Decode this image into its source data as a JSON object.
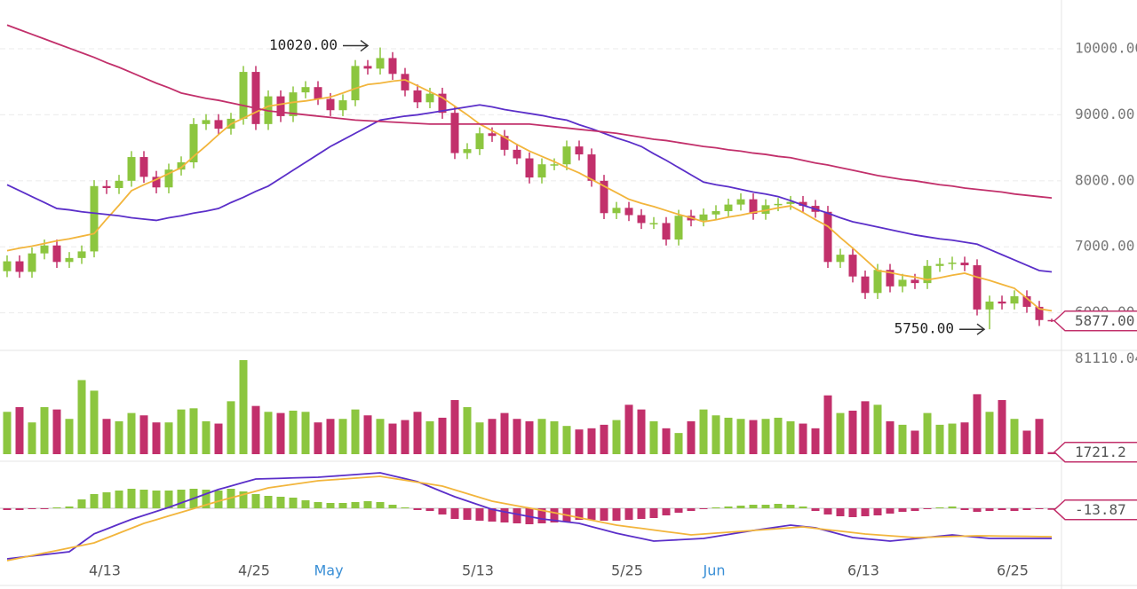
{
  "chart_data": [
    {
      "type": "candlestick",
      "up_color": "#8cc63f",
      "down_color": "#c2306b",
      "ylim": [
        5430,
        10740
      ],
      "yticks": [
        {
          "value": 6000,
          "label": "6000.00"
        },
        {
          "value": 7000,
          "label": "7000.00"
        },
        {
          "value": 8000,
          "label": "8000.00"
        },
        {
          "value": 9000,
          "label": "9000.00"
        },
        {
          "value": 10000,
          "label": "10000.00"
        }
      ],
      "grid": true,
      "categories": [
        null,
        null,
        null,
        null,
        null,
        null,
        null,
        "4/13",
        null,
        null,
        null,
        null,
        null,
        null,
        null,
        null,
        null,
        null,
        null,
        "4/25",
        null,
        null,
        null,
        null,
        null,
        "May",
        null,
        null,
        null,
        null,
        null,
        null,
        null,
        null,
        null,
        null,
        null,
        "5/13",
        null,
        null,
        null,
        null,
        null,
        null,
        null,
        null,
        null,
        null,
        null,
        "5/25",
        null,
        null,
        null,
        null,
        null,
        null,
        "Jun",
        null,
        null,
        null,
        null,
        null,
        null,
        null,
        null,
        null,
        null,
        null,
        "6/13",
        null,
        null,
        null,
        null,
        null,
        null,
        null,
        null,
        null,
        null,
        null,
        "6/25",
        null,
        null,
        null,
        null
      ],
      "ohlc": [
        [
          6630,
          6870,
          6540,
          6780
        ],
        [
          6780,
          6870,
          6530,
          6620
        ],
        [
          6620,
          6990,
          6530,
          6900
        ],
        [
          6900,
          7110,
          6810,
          7020
        ],
        [
          7020,
          7110,
          6680,
          6770
        ],
        [
          6770,
          6920,
          6680,
          6830
        ],
        [
          6830,
          7020,
          6740,
          6930
        ],
        [
          6930,
          8010,
          6840,
          7920
        ],
        [
          7920,
          8010,
          7800,
          7890
        ],
        [
          7890,
          8090,
          7800,
          8000
        ],
        [
          8000,
          8450,
          7910,
          8360
        ],
        [
          8360,
          8450,
          7970,
          8060
        ],
        [
          8060,
          8150,
          7810,
          7900
        ],
        [
          7900,
          8260,
          7810,
          8170
        ],
        [
          8170,
          8370,
          8080,
          8280
        ],
        [
          8280,
          8950,
          8190,
          8860
        ],
        [
          8860,
          9010,
          8770,
          8920
        ],
        [
          8920,
          9010,
          8700,
          8790
        ],
        [
          8790,
          9030,
          8700,
          8940
        ],
        [
          8940,
          9740,
          8850,
          9650
        ],
        [
          9650,
          9740,
          8770,
          8860
        ],
        [
          8860,
          9370,
          8770,
          9280
        ],
        [
          9280,
          9370,
          8890,
          8980
        ],
        [
          8980,
          9430,
          8890,
          9340
        ],
        [
          9340,
          9510,
          9250,
          9420
        ],
        [
          9420,
          9510,
          9150,
          9240
        ],
        [
          9240,
          9330,
          8980,
          9070
        ],
        [
          9070,
          9310,
          8980,
          9220
        ],
        [
          9220,
          9830,
          9130,
          9740
        ],
        [
          9740,
          9830,
          9610,
          9700
        ],
        [
          9700,
          10020,
          9610,
          9860
        ],
        [
          9860,
          9950,
          9530,
          9620
        ],
        [
          9620,
          9710,
          9280,
          9370
        ],
        [
          9370,
          9460,
          9100,
          9190
        ],
        [
          9190,
          9410,
          9100,
          9320
        ],
        [
          9320,
          9410,
          8940,
          9030
        ],
        [
          9030,
          9120,
          8330,
          8420
        ],
        [
          8420,
          8570,
          8330,
          8480
        ],
        [
          8480,
          8810,
          8390,
          8720
        ],
        [
          8720,
          8810,
          8590,
          8680
        ],
        [
          8680,
          8770,
          8380,
          8470
        ],
        [
          8470,
          8560,
          8250,
          8340
        ],
        [
          8340,
          8430,
          7960,
          8050
        ],
        [
          8050,
          8340,
          7960,
          8250
        ],
        [
          8250,
          8340,
          8160,
          8250
        ],
        [
          8250,
          8610,
          8160,
          8520
        ],
        [
          8520,
          8610,
          8310,
          8400
        ],
        [
          8400,
          8490,
          7910,
          8000
        ],
        [
          8000,
          8090,
          7420,
          7510
        ],
        [
          7510,
          7680,
          7420,
          7590
        ],
        [
          7590,
          7680,
          7390,
          7480
        ],
        [
          7480,
          7570,
          7270,
          7360
        ],
        [
          7360,
          7450,
          7270,
          7360
        ],
        [
          7360,
          7450,
          7020,
          7110
        ],
        [
          7110,
          7560,
          7020,
          7470
        ],
        [
          7470,
          7560,
          7310,
          7400
        ],
        [
          7400,
          7580,
          7310,
          7490
        ],
        [
          7490,
          7630,
          7400,
          7540
        ],
        [
          7540,
          7730,
          7450,
          7640
        ],
        [
          7640,
          7810,
          7550,
          7720
        ],
        [
          7720,
          7810,
          7410,
          7500
        ],
        [
          7500,
          7720,
          7410,
          7630
        ],
        [
          7630,
          7740,
          7540,
          7650
        ],
        [
          7650,
          7770,
          7560,
          7680
        ],
        [
          7680,
          7770,
          7530,
          7620
        ],
        [
          7620,
          7710,
          7440,
          7530
        ],
        [
          7530,
          7620,
          6680,
          6770
        ],
        [
          6770,
          6970,
          6680,
          6880
        ],
        [
          6880,
          6970,
          6460,
          6550
        ],
        [
          6550,
          6640,
          6210,
          6300
        ],
        [
          6300,
          6740,
          6210,
          6650
        ],
        [
          6650,
          6740,
          6310,
          6400
        ],
        [
          6400,
          6590,
          6310,
          6500
        ],
        [
          6500,
          6590,
          6360,
          6450
        ],
        [
          6450,
          6800,
          6360,
          6710
        ],
        [
          6710,
          6830,
          6620,
          6740
        ],
        [
          6740,
          6850,
          6650,
          6760
        ],
        [
          6760,
          6850,
          6630,
          6720
        ],
        [
          6720,
          6810,
          5960,
          6050
        ],
        [
          6050,
          6260,
          5750,
          6170
        ],
        [
          6170,
          6260,
          6050,
          6140
        ],
        [
          6140,
          6340,
          6050,
          6250
        ],
        [
          6250,
          6340,
          6000,
          6090
        ],
        [
          6090,
          6180,
          5800,
          5890
        ],
        [
          5890,
          5910,
          5860,
          5877
        ]
      ],
      "series": [
        {
          "color": "#f2b53c",
          "values": [
            6940,
            6980,
            7010,
            7050,
            7090,
            7120,
            7160,
            7200,
            7420,
            7630,
            7850,
            7940,
            8020,
            8110,
            8200,
            8370,
            8530,
            8700,
            8860,
            8950,
            9040,
            9130,
            9160,
            9190,
            9210,
            9240,
            9270,
            9330,
            9400,
            9460,
            9480,
            9510,
            9530,
            9440,
            9350,
            9260,
            9130,
            9000,
            8860,
            8760,
            8660,
            8550,
            8450,
            8370,
            8290,
            8200,
            8120,
            8020,
            7920,
            7820,
            7720,
            7660,
            7610,
            7550,
            7490,
            7440,
            7380,
            7410,
            7450,
            7480,
            7520,
            7550,
            7590,
            7620,
            7520,
            7410,
            7310,
            7140,
            6980,
            6810,
            6640,
            6610,
            6570,
            6540,
            6500,
            6530,
            6570,
            6600,
            6540,
            6490,
            6430,
            6370,
            6220,
            6060,
            6030
          ]
        },
        {
          "color": "#5b2fc9",
          "values": [
            7940,
            7850,
            7760,
            7670,
            7580,
            7560,
            7530,
            7510,
            7490,
            7470,
            7440,
            7420,
            7400,
            7440,
            7470,
            7510,
            7540,
            7580,
            7670,
            7750,
            7840,
            7920,
            8040,
            8160,
            8280,
            8400,
            8520,
            8620,
            8720,
            8820,
            8920,
            8950,
            8980,
            9000,
            9030,
            9060,
            9090,
            9120,
            9150,
            9120,
            9080,
            9050,
            9020,
            8990,
            8950,
            8920,
            8850,
            8790,
            8720,
            8650,
            8590,
            8520,
            8410,
            8310,
            8200,
            8090,
            7980,
            7940,
            7910,
            7870,
            7830,
            7800,
            7760,
            7700,
            7630,
            7570,
            7510,
            7440,
            7380,
            7340,
            7300,
            7260,
            7220,
            7180,
            7150,
            7120,
            7100,
            7070,
            7040,
            6960,
            6880,
            6800,
            6720,
            6640,
            6620
          ]
        },
        {
          "color": "#c2306b",
          "values": [
            10360,
            10290,
            10220,
            10150,
            10080,
            10010,
            9940,
            9870,
            9790,
            9720,
            9640,
            9560,
            9480,
            9410,
            9330,
            9290,
            9250,
            9220,
            9180,
            9140,
            9100,
            9060,
            9040,
            9020,
            9000,
            8980,
            8960,
            8940,
            8920,
            8910,
            8900,
            8890,
            8880,
            8870,
            8860,
            8860,
            8860,
            8860,
            8860,
            8860,
            8860,
            8860,
            8860,
            8840,
            8820,
            8800,
            8780,
            8760,
            8740,
            8720,
            8690,
            8660,
            8630,
            8610,
            8580,
            8550,
            8520,
            8500,
            8470,
            8450,
            8420,
            8400,
            8370,
            8350,
            8310,
            8270,
            8240,
            8200,
            8160,
            8120,
            8080,
            8050,
            8020,
            8000,
            7970,
            7940,
            7920,
            7890,
            7870,
            7850,
            7830,
            7800,
            7780,
            7760,
            7740
          ]
        }
      ],
      "annotations": [
        "10020.00",
        "5750.00"
      ],
      "current_label": "5877.00"
    },
    {
      "type": "bar",
      "ylim": [
        0,
        86000
      ],
      "yticks": [
        {
          "value": 81110.04,
          "label": "81110.04"
        }
      ],
      "values": [
        36000,
        40000,
        27000,
        40000,
        38000,
        30000,
        63000,
        54000,
        30000,
        28000,
        35000,
        33000,
        27000,
        27000,
        38000,
        39000,
        28000,
        26000,
        45000,
        80000,
        41000,
        36000,
        35000,
        37000,
        36000,
        27000,
        30000,
        30000,
        38000,
        33000,
        30000,
        26000,
        29000,
        36000,
        28000,
        31000,
        46000,
        40000,
        27000,
        30000,
        35000,
        30000,
        28000,
        30000,
        28000,
        24000,
        21000,
        22000,
        25000,
        29000,
        42000,
        38000,
        28000,
        22000,
        18000,
        28000,
        38000,
        33000,
        31000,
        30000,
        29000,
        30000,
        31000,
        28000,
        26000,
        22000,
        50000,
        35000,
        37000,
        45000,
        42000,
        28000,
        25000,
        20000,
        35000,
        25000,
        26000,
        27000,
        51000,
        36000,
        46000,
        30000,
        20000,
        30000,
        1721.2
      ],
      "current_label": "1721.2"
    },
    {
      "type": "macd",
      "ylim": [
        -496,
        384
      ],
      "values": [
        -16,
        -16,
        -8,
        -8,
        8,
        16,
        80,
        128,
        144,
        160,
        176,
        168,
        160,
        160,
        168,
        176,
        168,
        160,
        176,
        152,
        128,
        112,
        104,
        96,
        72,
        56,
        48,
        48,
        56,
        64,
        56,
        32,
        8,
        -16,
        -24,
        -56,
        -96,
        -104,
        -112,
        -120,
        -128,
        -136,
        -144,
        -136,
        -128,
        -120,
        -104,
        -104,
        -112,
        -112,
        -104,
        -96,
        -88,
        -64,
        -40,
        -24,
        -8,
        8,
        16,
        24,
        32,
        32,
        40,
        32,
        16,
        -24,
        -56,
        -72,
        -80,
        -72,
        -64,
        -48,
        -32,
        -24,
        -8,
        8,
        16,
        -16,
        -32,
        -24,
        -16,
        -24,
        -16,
        -8,
        -13.87
      ],
      "series": [
        {
          "color": "#5b2fc9",
          "values": [
            -456,
            -443,
            -430,
            -418,
            -405,
            -392,
            -311,
            -230,
            -187,
            -143,
            -100,
            -64,
            -28,
            8,
            49,
            89,
            130,
            170,
            201,
            233,
            264,
            267,
            270,
            274,
            277,
            280,
            288,
            296,
            304,
            312,
            320,
            293,
            267,
            240,
            195,
            149,
            104,
            66,
            28,
            -10,
            -32,
            -53,
            -75,
            -96,
            -109,
            -123,
            -136,
            -166,
            -195,
            -225,
            -249,
            -272,
            -296,
            -290,
            -284,
            -278,
            -272,
            -254,
            -236,
            -218,
            -200,
            -184,
            -168,
            -152,
            -164,
            -176,
            -205,
            -235,
            -264,
            -275,
            -285,
            -296,
            -285,
            -274,
            -262,
            -251,
            -240,
            -251,
            -261,
            -272,
            -272,
            -272,
            -272,
            -272,
            -272
          ]
        },
        {
          "color": "#f2b53c",
          "values": [
            -472,
            -449,
            -426,
            -403,
            -381,
            -358,
            -335,
            -312,
            -268,
            -224,
            -180,
            -136,
            -103,
            -69,
            -36,
            -3,
            31,
            64,
            94,
            124,
            154,
            184,
            200,
            216,
            232,
            248,
            256,
            264,
            272,
            280,
            288,
            270,
            253,
            235,
            218,
            200,
            166,
            132,
            98,
            64,
            43,
            22,
            2,
            -19,
            -40,
            -62,
            -85,
            -107,
            -130,
            -152,
            -167,
            -181,
            -196,
            -211,
            -225,
            -240,
            -232,
            -224,
            -216,
            -208,
            -200,
            -192,
            -184,
            -176,
            -168,
            -181,
            -194,
            -206,
            -219,
            -232,
            -240,
            -248,
            -256,
            -264,
            -261,
            -258,
            -254,
            -251,
            -248,
            -249,
            -251,
            -252,
            -253,
            -255,
            -256
          ]
        }
      ],
      "current_label": "-13.87"
    }
  ]
}
